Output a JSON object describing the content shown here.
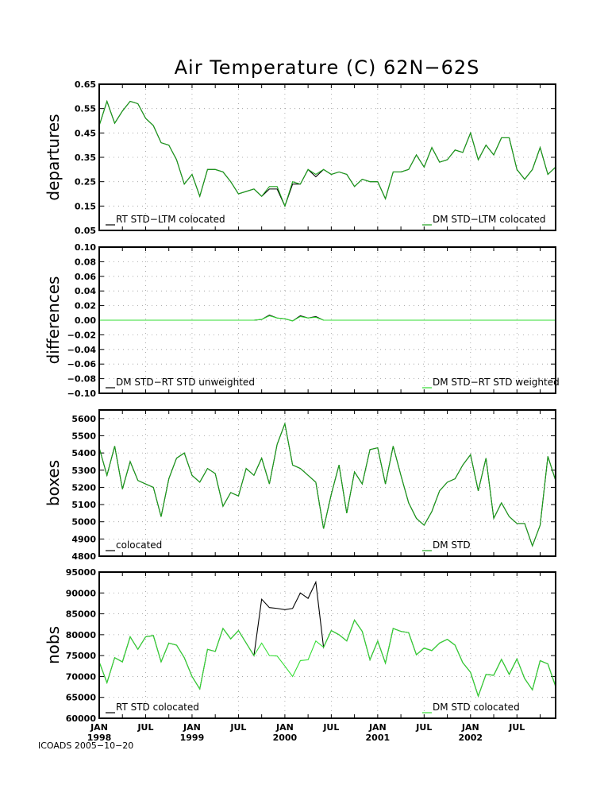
{
  "title": "Air Temperature (C) 62N−62S",
  "footer": "ICOADS 2005−10−20",
  "colors": {
    "black": "#000000",
    "green": "#1aa11a",
    "lightgreen": "#33dd33",
    "grid": "#999999"
  },
  "x_ticks": [
    {
      "month": "JAN",
      "year": "1998",
      "t": 0
    },
    {
      "month": "JUL",
      "year": "",
      "t": 6
    },
    {
      "month": "JAN",
      "year": "1999",
      "t": 12
    },
    {
      "month": "JUL",
      "year": "",
      "t": 18
    },
    {
      "month": "JAN",
      "year": "2000",
      "t": 24
    },
    {
      "month": "JUL",
      "year": "",
      "t": 30
    },
    {
      "month": "JAN",
      "year": "2001",
      "t": 36
    },
    {
      "month": "JUL",
      "year": "",
      "t": 42
    },
    {
      "month": "JAN",
      "year": "2002",
      "t": 48
    },
    {
      "month": "JUL",
      "year": "",
      "t": 54
    }
  ],
  "chart_data": [
    {
      "type": "line",
      "ylabel": "departures",
      "ylim": [
        0.05,
        0.65
      ],
      "yticks": [
        "0.05",
        "0.15",
        "0.25",
        "0.35",
        "0.45",
        "0.55",
        "0.65"
      ],
      "xlim": [
        0,
        59
      ],
      "legend": [
        {
          "label": "RT STD−LTM colocated",
          "color": "#000000",
          "placement": "bottom-left"
        },
        {
          "label": "DM STD−LTM colocated",
          "color": "#1aa11a",
          "placement": "bottom-right"
        }
      ],
      "series": [
        {
          "name": "RT STD−LTM colocated",
          "color": "#000000",
          "values": [
            0.48,
            0.58,
            0.49,
            0.54,
            0.58,
            0.57,
            0.51,
            0.48,
            0.41,
            0.4,
            0.34,
            0.24,
            0.28,
            0.19,
            0.3,
            0.3,
            0.29,
            0.25,
            0.2,
            0.21,
            0.22,
            0.19,
            0.22,
            0.22,
            0.15,
            0.24,
            0.24,
            0.3,
            0.27,
            0.3,
            0.28,
            0.29,
            0.28,
            0.23,
            0.26,
            0.25,
            0.25,
            0.18,
            0.29,
            0.29,
            0.3,
            0.36,
            0.31,
            0.39,
            0.33,
            0.34,
            0.38,
            0.37,
            0.45,
            0.34,
            0.4,
            0.36,
            0.43,
            0.43,
            0.3,
            0.26,
            0.3,
            0.39,
            0.28,
            0.31
          ]
        },
        {
          "name": "DM STD−LTM colocated",
          "color": "#1aa11a",
          "values": [
            0.48,
            0.58,
            0.49,
            0.54,
            0.58,
            0.57,
            0.51,
            0.48,
            0.41,
            0.4,
            0.34,
            0.24,
            0.28,
            0.19,
            0.3,
            0.3,
            0.29,
            0.25,
            0.2,
            0.21,
            0.22,
            0.19,
            0.23,
            0.23,
            0.15,
            0.25,
            0.24,
            0.3,
            0.28,
            0.3,
            0.28,
            0.29,
            0.28,
            0.23,
            0.26,
            0.25,
            0.25,
            0.18,
            0.29,
            0.29,
            0.3,
            0.36,
            0.31,
            0.39,
            0.33,
            0.34,
            0.38,
            0.37,
            0.45,
            0.34,
            0.4,
            0.36,
            0.43,
            0.43,
            0.3,
            0.26,
            0.3,
            0.39,
            0.28,
            0.31
          ]
        }
      ]
    },
    {
      "type": "line",
      "ylabel": "differences",
      "ylim": [
        -0.1,
        0.1
      ],
      "yticks": [
        "−0.10",
        "−0.08",
        "−0.06",
        "−0.04",
        "−0.02",
        "0.00",
        "0.02",
        "0.04",
        "0.06",
        "0.08",
        "0.10"
      ],
      "xlim": [
        0,
        59
      ],
      "legend": [
        {
          "label": "DM STD−RT STD unweighted",
          "color": "#000000",
          "placement": "bottom-left"
        },
        {
          "label": "DM STD−RT STD weighted",
          "color": "#33dd33",
          "placement": "bottom-right"
        }
      ],
      "series": [
        {
          "name": "DM STD−RT STD unweighted",
          "color": "#000000",
          "values": [
            0,
            0,
            0,
            0,
            0,
            0,
            0,
            0,
            0,
            0,
            0,
            0,
            0,
            0,
            0,
            0,
            0,
            0,
            0,
            0,
            0,
            0.001,
            0.007,
            0.003,
            0.002,
            -0.001,
            0.006,
            0.003,
            0.005,
            0,
            0,
            0,
            0,
            0,
            0,
            0,
            0,
            0,
            0,
            0,
            0,
            0,
            0,
            0,
            0,
            0,
            0,
            0,
            0,
            0,
            0,
            0,
            0,
            0,
            0,
            0,
            0,
            0,
            0,
            0
          ]
        },
        {
          "name": "DM STD−RT STD weighted",
          "color": "#33dd33",
          "values": [
            0,
            0,
            0,
            0,
            0,
            0,
            0,
            0,
            0,
            0,
            0,
            0,
            0,
            0,
            0,
            0,
            0,
            0,
            0,
            0,
            0,
            0.001,
            0.006,
            0.003,
            0.002,
            -0.001,
            0.005,
            0.003,
            0.004,
            0,
            0,
            0,
            0,
            0,
            0,
            0,
            0,
            0,
            0,
            0,
            0,
            0,
            0,
            0,
            0,
            0,
            0,
            0,
            0,
            0,
            0,
            0,
            0,
            0,
            0,
            0,
            0,
            0,
            0,
            0
          ]
        }
      ]
    },
    {
      "type": "line",
      "ylabel": "boxes",
      "ylim": [
        4800,
        5650
      ],
      "yticks": [
        "4800",
        "4900",
        "5000",
        "5100",
        "5200",
        "5300",
        "5400",
        "5500",
        "5600"
      ],
      "ytick_values": [
        4800,
        4900,
        5000,
        5100,
        5200,
        5300,
        5400,
        5500,
        5600
      ],
      "xlim": [
        0,
        59
      ],
      "legend": [
        {
          "label": "colocated",
          "color": "#000000",
          "placement": "bottom-left"
        },
        {
          "label": "DM STD",
          "color": "#1aa11a",
          "placement": "bottom-right"
        }
      ],
      "series": [
        {
          "name": "colocated",
          "color": "#000000",
          "values": [
            5430,
            5270,
            5440,
            5190,
            5350,
            5240,
            5220,
            5200,
            5030,
            5250,
            5370,
            5400,
            5270,
            5230,
            5310,
            5280,
            5090,
            5170,
            5150,
            5310,
            5270,
            5370,
            5220,
            5450,
            5570,
            5330,
            5310,
            5270,
            5230,
            4960,
            5160,
            5330,
            5050,
            5290,
            5220,
            5420,
            5430,
            5220,
            5440,
            5270,
            5110,
            5020,
            4980,
            5060,
            5180,
            5230,
            5250,
            5330,
            5390,
            5180,
            5370,
            5020,
            5110,
            5030,
            4990,
            4990,
            4860,
            4980,
            5380,
            5240
          ]
        },
        {
          "name": "DM STD",
          "color": "#1aa11a",
          "values": [
            5430,
            5270,
            5440,
            5190,
            5350,
            5240,
            5220,
            5200,
            5030,
            5250,
            5370,
            5400,
            5270,
            5230,
            5310,
            5280,
            5090,
            5170,
            5150,
            5310,
            5270,
            5370,
            5220,
            5450,
            5570,
            5330,
            5310,
            5270,
            5230,
            4960,
            5160,
            5330,
            5050,
            5290,
            5220,
            5420,
            5430,
            5220,
            5440,
            5270,
            5110,
            5020,
            4980,
            5060,
            5180,
            5230,
            5250,
            5330,
            5390,
            5180,
            5370,
            5020,
            5110,
            5030,
            4990,
            4990,
            4860,
            4980,
            5380,
            5240
          ]
        }
      ]
    },
    {
      "type": "line",
      "ylabel": "nobs",
      "ylim": [
        60000,
        95000
      ],
      "yticks": [
        "60000",
        "65000",
        "70000",
        "75000",
        "80000",
        "85000",
        "90000",
        "95000"
      ],
      "ytick_values": [
        60000,
        65000,
        70000,
        75000,
        80000,
        85000,
        90000,
        95000
      ],
      "xlim": [
        0,
        59
      ],
      "legend": [
        {
          "label": "RT STD colocated",
          "color": "#000000",
          "placement": "bottom-left"
        },
        {
          "label": "DM STD colocated",
          "color": "#33dd33",
          "placement": "bottom-right"
        }
      ],
      "series": [
        {
          "name": "RT STD colocated",
          "color": "#000000",
          "values": [
            73500,
            68500,
            74500,
            73500,
            79500,
            76500,
            79500,
            79800,
            73500,
            78000,
            77500,
            74500,
            70000,
            67000,
            76500,
            76000,
            81500,
            79000,
            81000,
            78000,
            75000,
            88500,
            86500,
            86300,
            86000,
            86300,
            90000,
            88700,
            92600,
            77000,
            81000,
            80000,
            78500,
            83500,
            80800,
            74000,
            78500,
            73200,
            81500,
            80800,
            80500,
            75200,
            76800,
            76200,
            78000,
            78900,
            77500,
            73300,
            71000,
            65300,
            70500,
            70300,
            74100,
            70500,
            74200,
            69500,
            66800,
            73800,
            73000,
            67600
          ]
        },
        {
          "name": "DM STD colocated",
          "color": "#33dd33",
          "values": [
            73500,
            68500,
            74500,
            73500,
            79500,
            76500,
            79500,
            79800,
            73500,
            78000,
            77500,
            74500,
            70000,
            67000,
            76500,
            76000,
            81500,
            79000,
            81000,
            78000,
            75000,
            78000,
            75000,
            74900,
            72500,
            70000,
            73800,
            74000,
            78500,
            77000,
            81000,
            80000,
            78500,
            83500,
            80800,
            74000,
            78500,
            73200,
            81500,
            80800,
            80500,
            75200,
            76800,
            76200,
            78000,
            78900,
            77500,
            73300,
            71000,
            65300,
            70500,
            70300,
            74100,
            70500,
            74200,
            69500,
            66800,
            73800,
            73000,
            67600
          ]
        }
      ]
    }
  ]
}
